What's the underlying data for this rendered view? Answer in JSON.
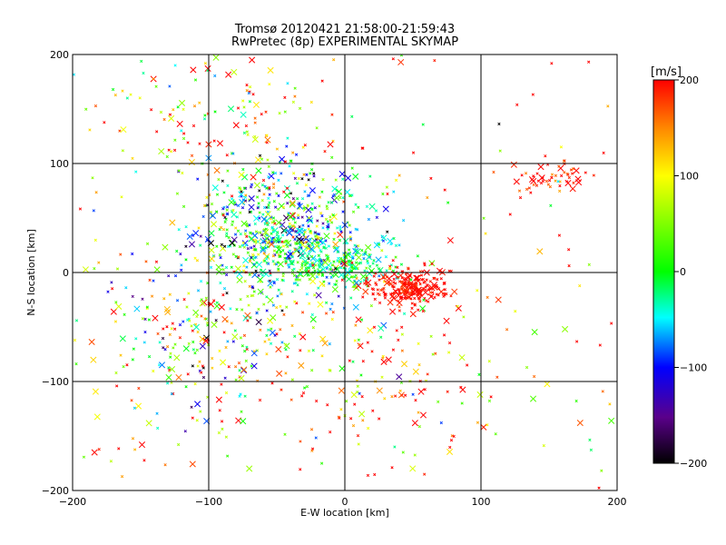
{
  "chart_data": {
    "type": "scatter",
    "title": "Tromsø 20120421 21:58:00-21:59:43",
    "subtitle": "RwPretec (8p) EXPERIMENTAL SKYMAP",
    "xlabel": "E-W location [km]",
    "ylabel": "N-S location [km]",
    "xlim": [
      -200,
      200
    ],
    "ylim": [
      -200,
      200
    ],
    "xticks": [
      -200,
      -100,
      0,
      100,
      200
    ],
    "yticks": [
      -200,
      -100,
      0,
      100,
      200
    ],
    "grid": true,
    "colorbar": {
      "label": "[m/s]",
      "range": [
        -200,
        200
      ],
      "ticks": [
        200,
        100,
        0,
        -100,
        -200
      ],
      "colormap": [
        "#000000",
        "#5a008a",
        "#0000ff",
        "#00ffff",
        "#00ff00",
        "#ffff00",
        "#ff8c00",
        "#ff0000"
      ]
    },
    "clusters": [
      {
        "center": [
          -45,
          40
        ],
        "spread": [
          32,
          28
        ],
        "count": 650,
        "velocity_mean": -20,
        "velocity_spread": 90
      },
      {
        "center": [
          -5,
          8
        ],
        "spread": [
          22,
          10
        ],
        "count": 220,
        "velocity_mean": -10,
        "velocity_spread": 40
      },
      {
        "center": [
          45,
          -14
        ],
        "spread": [
          15,
          8
        ],
        "count": 230,
        "velocity_mean": 195,
        "velocity_spread": 10
      },
      {
        "center": [
          150,
          88
        ],
        "spread": [
          14,
          8
        ],
        "count": 55,
        "velocity_mean": 185,
        "velocity_spread": 25
      },
      {
        "center": [
          -100,
          -55
        ],
        "spread": [
          40,
          45
        ],
        "count": 260,
        "velocity_mean": 40,
        "velocity_spread": 120
      },
      {
        "center": [
          -95,
          140
        ],
        "spread": [
          45,
          35
        ],
        "count": 120,
        "velocity_mean": 120,
        "velocity_spread": 110
      },
      {
        "center": [
          25,
          -90
        ],
        "spread": [
          45,
          45
        ],
        "count": 130,
        "velocity_mean": 120,
        "velocity_spread": 120
      },
      {
        "center": [
          0,
          0
        ],
        "spread": [
          200,
          200
        ],
        "count": 200,
        "velocity_mean": 150,
        "velocity_spread": 120,
        "uniform": true
      }
    ]
  }
}
